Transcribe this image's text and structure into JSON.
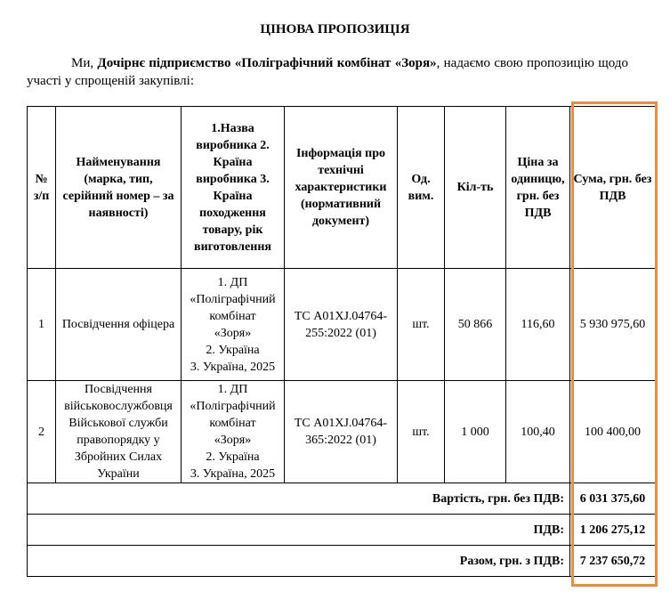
{
  "title": "ЦІНОВА ПРОПОЗИЦІЯ",
  "intro": {
    "prefix": "Ми, ",
    "company": "Дочірнє підприємство «Поліграфічний комбінат «Зоря»",
    "suffix": ", надаємо свою пропозицію щодо участі у спрощеній закупівлі:"
  },
  "table": {
    "headers": [
      "№ з/п",
      "Найменування (марка, тип, серійний номер – за наявності)",
      "1.Назва виробника 2. Країна виробника 3. Країна походження товару, рік виготовлення",
      "Інформація про технічні характеристики (нормативний документ)",
      "Од. вим.",
      "Кіл-ть",
      "Ціна за одиницю, грн. без ПДВ",
      "Сума, грн. без ПДВ"
    ],
    "rows": [
      {
        "num": "1",
        "name": "Посвідчення офіцера",
        "manufacturer": [
          "1. ДП",
          "«Поліграфічний",
          "комбінат",
          "«Зоря»",
          "2. Україна",
          "3. Україна, 2025"
        ],
        "spec": "ТС A01XJ.04764-255:2022 (01)",
        "unit": "шт.",
        "qty": "50 866",
        "price": "116,60",
        "sum": "5 930 975,60"
      },
      {
        "num": "2",
        "name": "Посвідчення військовослужбовця Військової служби правопорядку у Збройних Силах України",
        "manufacturer": [
          "1. ДП",
          "«Поліграфічний",
          "комбінат",
          "«Зоря»",
          "2. Україна",
          "3. Україна, 2025"
        ],
        "spec": "ТС A01XJ.04764-365:2022 (01)",
        "unit": "шт.",
        "qty": "1 000",
        "price": "100,40",
        "sum": "100 400,00"
      }
    ],
    "totals": [
      {
        "label": "Вартість, грн. без ПДВ:",
        "value": "6 031 375,60"
      },
      {
        "label": "ПДВ:",
        "value": "1 206 275,12"
      },
      {
        "label": "Разом, грн. з ПДВ:",
        "value": "7 237 650,72"
      }
    ]
  },
  "highlight_color": "#f08a3c"
}
